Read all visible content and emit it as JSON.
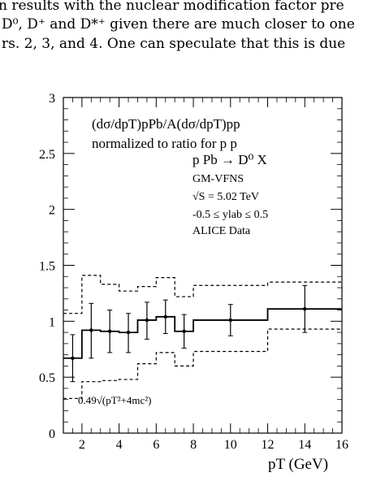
{
  "page": {
    "lines": [
      "n results with the nuclear modification factor pre",
      "D⁰, D⁺ and D*⁺ given there are much closer to one",
      "rs. 2, 3, and 4.  One can speculate that this is due"
    ]
  },
  "chart_data": {
    "type": "line",
    "title": "",
    "xlabel": "pT (GeV)",
    "ylabel": "",
    "xlim": [
      1,
      16
    ],
    "ylim": [
      0,
      3
    ],
    "xticks": [
      2,
      4,
      6,
      8,
      10,
      12,
      14,
      16
    ],
    "yticks": [
      0,
      0.5,
      1,
      1.5,
      2,
      2.5,
      3
    ],
    "ytick_labels": [
      "0",
      "0.5",
      "1",
      "1.5",
      "2",
      "2.5",
      "3"
    ],
    "legend": {
      "line1": "(dσ/dpT)pPb/A(dσ/dpT)pp",
      "line2": "normalized to ratio for p p",
      "reaction": "p Pb → D⁰ X",
      "scheme": "GM-VFNS",
      "energy": "√S = 5.02 TeV",
      "rapidity": "-0.5 ≤  ylab ≤ 0.5",
      "data_label": "ALICE Data"
    },
    "scale_label": "0.49√(pT²+4mc²)",
    "series": [
      {
        "kind": "theory-central",
        "bins": [
          [
            1,
            2,
            0.67
          ],
          [
            2,
            3,
            0.92
          ],
          [
            3,
            4,
            0.91
          ],
          [
            4,
            5,
            0.9
          ],
          [
            5,
            6,
            1.01
          ],
          [
            6,
            7,
            1.04
          ],
          [
            7,
            8,
            0.91
          ],
          [
            8,
            12,
            1.01
          ],
          [
            12,
            16,
            1.11
          ]
        ]
      },
      {
        "kind": "theory-upper",
        "bins": [
          [
            1,
            2,
            1.07
          ],
          [
            2,
            3,
            1.41
          ],
          [
            3,
            4,
            1.33
          ],
          [
            4,
            5,
            1.27
          ],
          [
            5,
            6,
            1.31
          ],
          [
            6,
            7,
            1.39
          ],
          [
            7,
            8,
            1.22
          ],
          [
            8,
            12,
            1.32
          ],
          [
            12,
            16,
            1.35
          ]
        ]
      },
      {
        "kind": "theory-lower",
        "bins": [
          [
            1,
            2,
            0.31
          ],
          [
            2,
            3,
            0.46
          ],
          [
            3,
            4,
            0.47
          ],
          [
            4,
            5,
            0.48
          ],
          [
            5,
            6,
            0.62
          ],
          [
            6,
            7,
            0.72
          ],
          [
            7,
            8,
            0.6
          ],
          [
            8,
            12,
            0.73
          ],
          [
            12,
            16,
            0.93
          ]
        ]
      },
      {
        "kind": "data",
        "name": "ALICE Data",
        "points": [
          {
            "x": 1.5,
            "y": 0.67,
            "xerr": 0.5,
            "ylo": 0.46,
            "yhi": 0.88
          },
          {
            "x": 2.5,
            "y": 0.92,
            "xerr": 0.5,
            "ylo": 0.67,
            "yhi": 1.16
          },
          {
            "x": 3.5,
            "y": 0.91,
            "xerr": 0.5,
            "ylo": 0.72,
            "yhi": 1.1
          },
          {
            "x": 4.5,
            "y": 0.9,
            "xerr": 0.5,
            "ylo": 0.72,
            "yhi": 1.07
          },
          {
            "x": 5.5,
            "y": 1.01,
            "xerr": 0.5,
            "ylo": 0.84,
            "yhi": 1.17
          },
          {
            "x": 6.5,
            "y": 1.04,
            "xerr": 0.5,
            "ylo": 0.89,
            "yhi": 1.19
          },
          {
            "x": 7.5,
            "y": 0.91,
            "xerr": 0.5,
            "ylo": 0.76,
            "yhi": 1.06
          },
          {
            "x": 10,
            "y": 1.01,
            "xerr": 2,
            "ylo": 0.87,
            "yhi": 1.15
          },
          {
            "x": 14,
            "y": 1.11,
            "xerr": 2,
            "ylo": 0.9,
            "yhi": 1.32
          }
        ]
      }
    ],
    "grid": false
  }
}
